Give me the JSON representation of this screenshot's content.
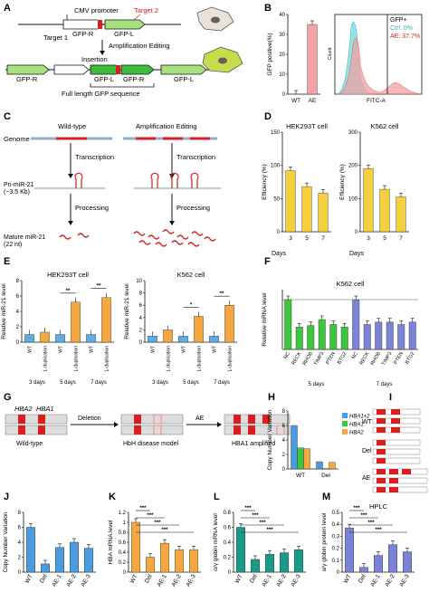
{
  "panels": {
    "A": {
      "label": "A",
      "cmv": "CMV promoter",
      "target1": "Target 1",
      "target2": "Target 2",
      "gfpr": "GFP-R",
      "gfpl": "GFP-L",
      "step": "Amplification Editing",
      "insertion": "Insertion",
      "full": "Full length GFP sequence"
    },
    "B": {
      "label": "B",
      "flow_legend": [
        "GFP+",
        "Ctrl: 0%",
        "AE: 37.7%"
      ],
      "flow_x": "FITC-A",
      "flow_y": "Count"
    },
    "C": {
      "label": "C",
      "genome": "Genome",
      "wt": "Wild-type",
      "ae": "Amplification Editing",
      "transcription": "Transcription",
      "processing": "Processing",
      "pri": "Pri-miR-21",
      "pri_size": "(~3.5 Kb)",
      "mature": "Mature miR-21",
      "mature_size": "(22 nt)"
    },
    "D": {
      "label": "D",
      "days_label": "Days"
    },
    "E": {
      "label": "E",
      "groups": [
        "3 days",
        "5 days",
        "7 days"
      ],
      "sig": "**",
      "sig1": "*"
    },
    "F": {
      "label": "F",
      "groups": [
        "5 days",
        "7 days"
      ]
    },
    "G": {
      "label": "G",
      "hba2": "HBA2",
      "hba1": "HBA1",
      "deletion": "Deletion",
      "ae": "AE",
      "wt": "Wild-type",
      "hbh": "HbH disease model",
      "amp": "HBA1 amplified"
    },
    "H": {
      "label": "H"
    },
    "I": {
      "label": "I",
      "rows": [
        "WT",
        "Del",
        "AE"
      ]
    },
    "J": {
      "label": "J"
    },
    "K": {
      "label": "K"
    },
    "L": {
      "label": "L"
    },
    "M": {
      "label": "M",
      "title": "HPLC"
    }
  },
  "chart_data": [
    {
      "id": "B",
      "type": "bar",
      "categories": [
        "WT",
        "AE"
      ],
      "values": [
        0,
        35
      ],
      "ylabel": "GFP positive(%)",
      "ylim": [
        0,
        40
      ],
      "yticks": [
        0,
        10,
        20,
        30,
        40
      ],
      "colors": [
        "#f4a3a8"
      ]
    },
    {
      "id": "D1",
      "type": "bar",
      "title": "HEK293T cell",
      "categories": [
        "3",
        "5",
        "7"
      ],
      "values": [
        92,
        68,
        58
      ],
      "ylabel": "Efficiency (%)",
      "ylim": [
        0,
        150
      ],
      "yticks": [
        0,
        50,
        100,
        150
      ],
      "colors": [
        "#f4d03f"
      ]
    },
    {
      "id": "D2",
      "type": "bar",
      "title": "K562 cell",
      "categories": [
        "3",
        "5",
        "7"
      ],
      "values": [
        190,
        128,
        105
      ],
      "ylabel": "Efficiency (%)",
      "ylim": [
        0,
        300
      ],
      "yticks": [
        0,
        100,
        200,
        300
      ],
      "colors": [
        "#f4d03f"
      ]
    },
    {
      "id": "E1",
      "type": "bar",
      "title": "HEK293T cell",
      "categories": [
        "WT",
        "L-duplication",
        "WT",
        "L-duplication",
        "WT",
        "L-duplication"
      ],
      "values": [
        1.0,
        1.3,
        1.0,
        5.2,
        1.0,
        5.8
      ],
      "ylabel": "Relative miR-21 level",
      "ylim": [
        0,
        8
      ],
      "yticks": [
        0,
        2,
        4,
        6,
        8
      ],
      "colors": [
        "#5dade2",
        "#f5a742",
        "#5dade2",
        "#f5a742",
        "#5dade2",
        "#f5a742"
      ]
    },
    {
      "id": "E2",
      "type": "bar",
      "title": "K562 cell",
      "categories": [
        "WT",
        "L-duplication",
        "WT",
        "L-duplication",
        "WT",
        "L-duplication"
      ],
      "values": [
        1.0,
        2.0,
        1.0,
        4.2,
        1.0,
        6.0
      ],
      "ylabel": "Relative miR-21 level",
      "ylim": [
        0,
        10
      ],
      "yticks": [
        0,
        2,
        4,
        6,
        8,
        10
      ],
      "colors": [
        "#5dade2",
        "#f5a742",
        "#5dade2",
        "#f5a742",
        "#5dade2",
        "#f5a742"
      ]
    },
    {
      "id": "F",
      "type": "bar",
      "title": "K562 cell",
      "categories": [
        "NC",
        "RECK",
        "RHOB",
        "TIMP3",
        "PTEN",
        "BTG2",
        "NC",
        "RECK",
        "RHOB",
        "TIMP3",
        "PTEN",
        "BTG2"
      ],
      "values": [
        1.0,
        0.45,
        0.48,
        0.6,
        0.5,
        0.45,
        1.0,
        0.5,
        0.55,
        0.55,
        0.5,
        0.55
      ],
      "ylabel": "Relative mRNA level",
      "ylim": [
        0,
        1.2
      ],
      "colors": [
        "#3ec53e",
        "#3ec53e",
        "#3ec53e",
        "#3ec53e",
        "#3ec53e",
        "#3ec53e",
        "#7b83d8",
        "#7b83d8",
        "#7b83d8",
        "#7b83d8",
        "#7b83d8",
        "#7b83d8"
      ]
    },
    {
      "id": "H",
      "type": "bar",
      "categories": [
        "WT",
        "Del"
      ],
      "series": [
        {
          "name": "HBA1+2",
          "values": [
            6.0,
            1.0
          ],
          "color": "#4a9be0"
        },
        {
          "name": "HBA1",
          "values": [
            2.9,
            0.05
          ],
          "color": "#3ec53e"
        },
        {
          "name": "HBA2",
          "values": [
            2.8,
            0.9
          ],
          "color": "#f5a742"
        }
      ],
      "ylabel": "Copy Number Variation",
      "ylim": [
        0,
        8
      ],
      "yticks": [
        0,
        2,
        4,
        6,
        8
      ]
    },
    {
      "id": "J",
      "type": "bar",
      "categories": [
        "WT",
        "Del",
        "AE-1",
        "AE-2",
        "AE-3"
      ],
      "values": [
        6.0,
        1.1,
        3.3,
        4.0,
        3.2
      ],
      "ylabel": "Copy Number Variation",
      "ylim": [
        0,
        8
      ],
      "yticks": [
        0,
        2,
        4,
        6,
        8
      ],
      "colors": [
        "#4a9be0"
      ]
    },
    {
      "id": "K",
      "type": "bar",
      "categories": [
        "WT",
        "Del",
        "AE-1",
        "AE-2",
        "AE-3"
      ],
      "values": [
        1.0,
        0.3,
        0.58,
        0.45,
        0.45
      ],
      "ylabel": "HBA mRNA level",
      "ylim": [
        0,
        1.2
      ],
      "yticks": [
        0.0,
        0.2,
        0.4,
        0.6,
        0.8,
        1.0,
        1.2
      ],
      "colors": [
        "#f5a742"
      ],
      "sig": [
        "***",
        "***",
        "***",
        "***"
      ]
    },
    {
      "id": "L",
      "type": "bar",
      "categories": [
        "WT",
        "Del",
        "AE-1",
        "AE-2",
        "AE-3"
      ],
      "values": [
        0.6,
        0.17,
        0.24,
        0.26,
        0.3
      ],
      "ylabel": "α/γ globin mRNA level",
      "ylim": [
        0,
        0.8
      ],
      "yticks": [
        0.0,
        0.2,
        0.4,
        0.6,
        0.8
      ],
      "colors": [
        "#1a9a8a"
      ],
      "sig": [
        "***",
        "***",
        "***",
        "***"
      ]
    },
    {
      "id": "M",
      "type": "bar",
      "title": "HPLC",
      "categories": [
        "WT",
        "Del",
        "AE-1",
        "AE-2",
        "AE-3"
      ],
      "values": [
        0.37,
        0.04,
        0.14,
        0.23,
        0.17
      ],
      "ylabel": "α/γ globin protein level",
      "ylim": [
        0,
        0.5
      ],
      "yticks": [
        0.0,
        0.1,
        0.2,
        0.3,
        0.4,
        0.5
      ],
      "colors": [
        "#7b83d8"
      ],
      "sig": [
        "***",
        "***",
        "***",
        "***"
      ]
    }
  ]
}
